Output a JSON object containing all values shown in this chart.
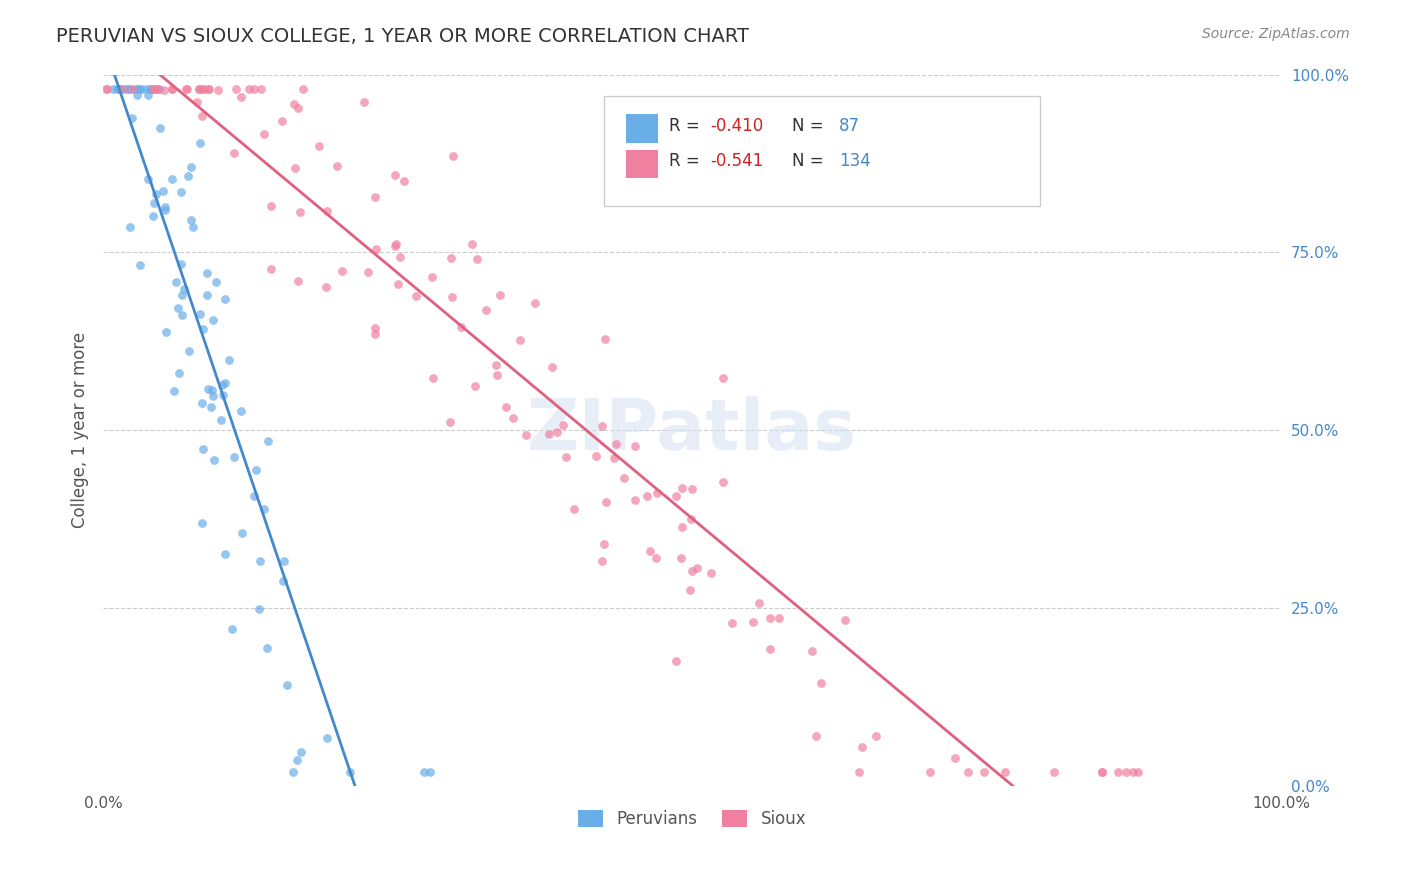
{
  "title": "PERUVIAN VS SIOUX COLLEGE, 1 YEAR OR MORE CORRELATION CHART",
  "source_text": "Source: ZipAtlas.com",
  "xlabel": "",
  "ylabel": "College, 1 year or more",
  "xlim": [
    0.0,
    1.0
  ],
  "ylim": [
    0.0,
    1.0
  ],
  "x_tick_labels": [
    "0.0%",
    "",
    "",
    "",
    "",
    "",
    "",
    "",
    "",
    "",
    "100.0%"
  ],
  "y_tick_labels_right": [
    "0.0%",
    "25.0%",
    "50.0%",
    "75.0%",
    "100.0%"
  ],
  "legend_entries": [
    {
      "label": "R = -0.410   N =  87",
      "color": "#a8c8f8",
      "series": "Peruvians"
    },
    {
      "label": "R = -0.541   N = 134",
      "color": "#f8a8c0",
      "series": "Sioux"
    }
  ],
  "peruvians_R": -0.41,
  "peruvians_N": 87,
  "sioux_R": -0.541,
  "sioux_N": 134,
  "scatter_alpha": 0.7,
  "peruvian_color": "#6aaee8",
  "sioux_color": "#f080a0",
  "peruvian_line_color": "#4488cc",
  "sioux_line_color": "#e06080",
  "watermark_text": "ZIPatlas",
  "background_color": "#ffffff",
  "grid_color": "#cccccc",
  "title_color": "#333333",
  "axis_label_color": "#555555",
  "right_tick_color": "#4488cc",
  "legend_R_color": "#cc2222",
  "legend_N_color": "#4488cc"
}
